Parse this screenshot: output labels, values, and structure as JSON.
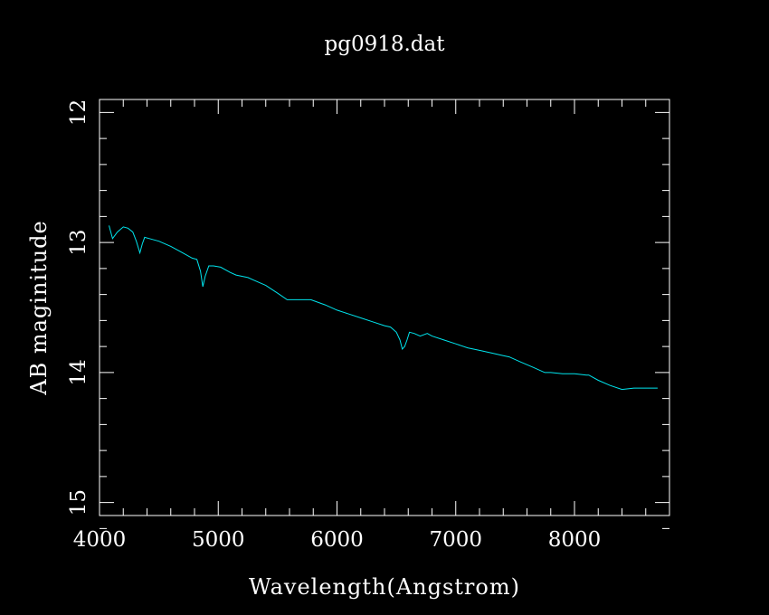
{
  "colors": {
    "background": "#000000",
    "axis": "#ffffff",
    "series": "#00e5ee"
  },
  "chart_data": {
    "type": "line",
    "title": "pg0918.dat",
    "xlabel": "Wavelength(Angstrom)",
    "ylabel": "AB maginitude",
    "xlim": [
      4000,
      8800
    ],
    "ylim": [
      15.1,
      11.9
    ],
    "y_inverted": true,
    "grid": false,
    "xticks": [
      "4000",
      "5000",
      "6000",
      "7000",
      "8000"
    ],
    "yticks": [
      "12",
      "13",
      "14",
      "15"
    ],
    "series": [
      {
        "x": [
          4080,
          4110,
          4150,
          4200,
          4240,
          4280,
          4310,
          4340,
          4360,
          4380,
          4420,
          4500,
          4600,
          4700,
          4780,
          4820,
          4850,
          4870,
          4890,
          4920,
          4960,
          5020,
          5100,
          5150,
          5250,
          5300,
          5400,
          5500,
          5580,
          5700,
          5780,
          5900,
          6000,
          6100,
          6200,
          6300,
          6400,
          6450,
          6500,
          6530,
          6550,
          6570,
          6590,
          6610,
          6650,
          6700,
          6760,
          6800,
          6900,
          7000,
          7100,
          7200,
          7300,
          7400,
          7450,
          7550,
          7650,
          7750,
          7800,
          7900,
          8000,
          8100,
          8120,
          8200,
          8300,
          8400,
          8500,
          8600,
          8700
        ],
        "y": [
          12.87,
          12.97,
          12.92,
          12.88,
          12.89,
          12.92,
          12.99,
          13.08,
          13.01,
          12.96,
          12.97,
          12.99,
          13.03,
          13.08,
          13.12,
          13.13,
          13.22,
          13.34,
          13.26,
          13.18,
          13.18,
          13.19,
          13.23,
          13.25,
          13.27,
          13.29,
          13.33,
          13.39,
          13.44,
          13.44,
          13.44,
          13.48,
          13.52,
          13.55,
          13.58,
          13.61,
          13.64,
          13.65,
          13.69,
          13.75,
          13.82,
          13.8,
          13.75,
          13.69,
          13.7,
          13.72,
          13.7,
          13.72,
          13.75,
          13.78,
          13.81,
          13.83,
          13.85,
          13.87,
          13.88,
          13.92,
          13.96,
          14.0,
          14.0,
          14.01,
          14.01,
          14.02,
          14.02,
          14.06,
          14.1,
          14.13,
          14.12,
          14.12,
          14.12
        ]
      }
    ]
  }
}
